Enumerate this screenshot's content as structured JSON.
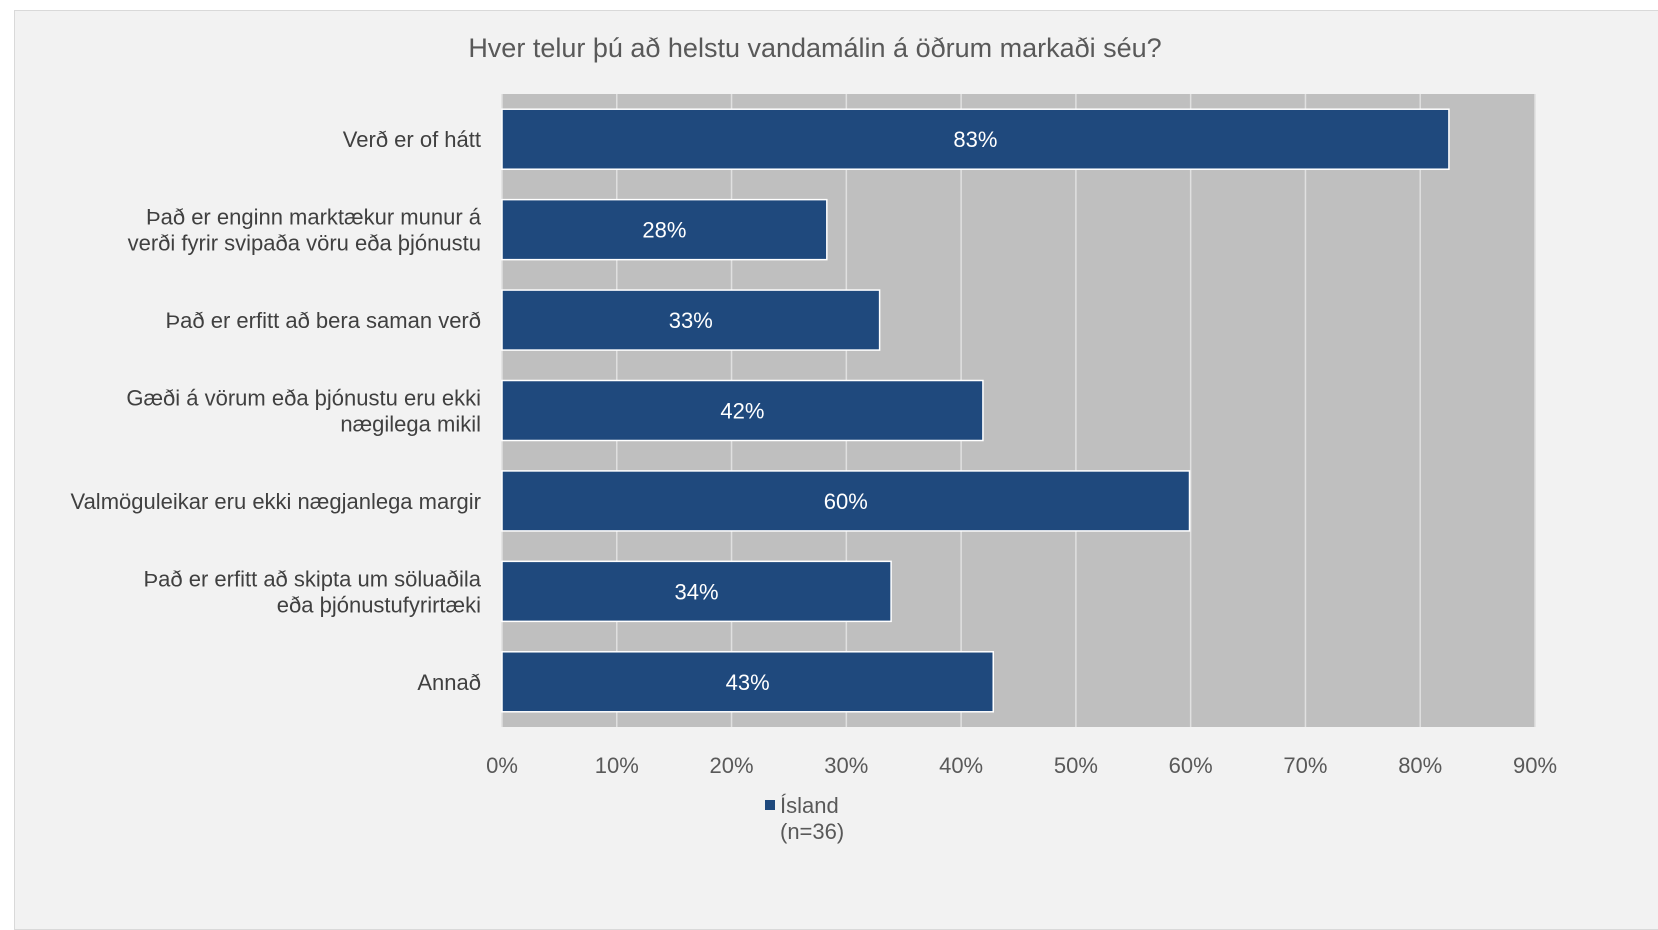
{
  "chart_data": {
    "type": "bar",
    "orientation": "horizontal",
    "title": "Hver telur þú að helstu vandamálin á öðrum markaði séu?",
    "categories": [
      [
        "Verð er of hátt"
      ],
      [
        "Það er enginn marktækur munur á",
        "verði fyrir svipaða vöru eða þjónustu"
      ],
      [
        "Það er erfitt að bera saman verð"
      ],
      [
        "Gæði á vörum eða þjónustu eru ekki",
        "nægilega mikil"
      ],
      [
        "Valmöguleikar eru ekki nægjanlega margir"
      ],
      [
        "Það er erfitt að skipta um söluaðila",
        "eða þjónustufyrirtæki"
      ],
      [
        "Annað"
      ]
    ],
    "series": [
      {
        "name": [
          "Ísland",
          "(n=36)"
        ],
        "values": [
          0.825,
          0.283,
          0.329,
          0.419,
          0.599,
          0.339,
          0.428
        ],
        "data_labels": [
          "83%",
          "28%",
          "33%",
          "42%",
          "60%",
          "34%",
          "43%"
        ],
        "color": "#1f497d"
      }
    ],
    "x_ticks": [
      "0%",
      "10%",
      "20%",
      "30%",
      "40%",
      "50%",
      "60%",
      "70%",
      "80%",
      "90%"
    ],
    "xlim": [
      0,
      0.9
    ],
    "grid": true,
    "legend_position": "bottom",
    "plot_background": "#bfbfbf",
    "gridline_color": "#e0e0e0"
  }
}
